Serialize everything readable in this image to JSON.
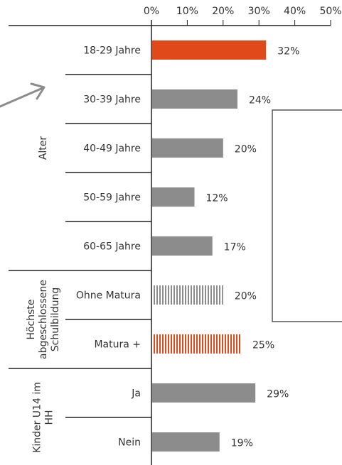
{
  "chart_data": {
    "type": "bar",
    "orientation": "horizontal",
    "xlim": [
      0,
      50
    ],
    "x_ticks": [
      "0%",
      "10%",
      "20%",
      "30%",
      "40%",
      "50%"
    ],
    "x_tick_values": [
      0,
      10,
      20,
      30,
      40,
      50
    ],
    "axis_position": "top",
    "grid": false,
    "groups": [
      {
        "label": [
          "Alter"
        ],
        "bars": [
          {
            "category": "18-29 Jahre",
            "value": 32,
            "label": "32%",
            "color": "#e0491a",
            "style": "solid"
          },
          {
            "category": "30-39 Jahre",
            "value": 24,
            "label": "24%",
            "color": "#8c8c8c",
            "style": "solid"
          },
          {
            "category": "40-49 Jahre",
            "value": 20,
            "label": "20%",
            "color": "#8c8c8c",
            "style": "solid"
          },
          {
            "category": "50-59 Jahre",
            "value": 12,
            "label": "12%",
            "color": "#8c8c8c",
            "style": "solid"
          },
          {
            "category": "60-65 Jahre",
            "value": 17,
            "label": "17%",
            "color": "#8c8c8c",
            "style": "solid"
          }
        ]
      },
      {
        "label": [
          "Höchste",
          "abgeschlossene",
          "Schulbildung"
        ],
        "bars": [
          {
            "category": "Ohne Matura",
            "value": 20,
            "label": "20%",
            "color": "#8c8c8c",
            "style": "striped"
          },
          {
            "category": "Matura +",
            "value": 25,
            "label": "25%",
            "color": "#e0491a",
            "style": "striped"
          }
        ]
      },
      {
        "label": [
          "Kinder U14 im",
          "HH"
        ],
        "bars": [
          {
            "category": "Ja",
            "value": 29,
            "label": "29%",
            "color": "#8c8c8c",
            "style": "solid"
          },
          {
            "category": "Nein",
            "value": 19,
            "label": "19%",
            "color": "#8c8c8c",
            "style": "solid"
          }
        ]
      }
    ]
  },
  "decorations": {
    "arrow_color": "#8c8c8c",
    "line_color": "#222222",
    "bracket_color": "#555555"
  }
}
